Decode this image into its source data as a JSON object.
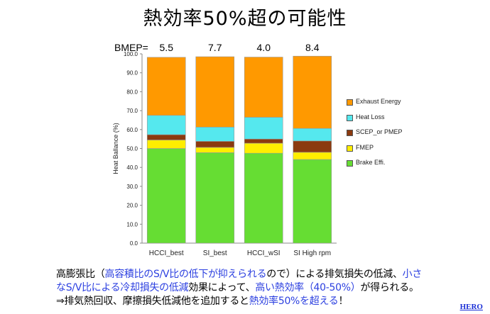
{
  "slide": {
    "title": "熱効率50%超の可能性",
    "bmep_label": "BMEP=",
    "bmep_values": [
      "5.5",
      "7.7",
      "4.0",
      "8.4"
    ],
    "note": {
      "line1_a": "高膨張比（",
      "line1_b": "高容積比のS/V比の低下が抑えられる",
      "line1_c": "ので）による排気損失の低減、",
      "line1_d": "小さ",
      "line2_a": "なS/V比による冷却損失の低減",
      "line2_b": "効果によって、",
      "line2_c": "高い熱効率（40-50%）",
      "line2_d": "が得られる。",
      "line3_a": "⇒排気熱回収、摩擦損失低減他を追加すると",
      "line3_b": "熱効率50%を超える",
      "line3_c": "！"
    },
    "link_text": "HERO"
  },
  "colors": {
    "brake": "#66dd33",
    "fmep": "#ffee00",
    "scep": "#8b3a0f",
    "heat_loss": "#55e8ee",
    "exhaust": "#ff9900",
    "highlight_text": "#2b3fe0"
  },
  "chart_data": {
    "type": "bar",
    "stacked": true,
    "categories": [
      "HCCI_best",
      "SI_best",
      "HCCI_wSI",
      "SI High rpm"
    ],
    "ylabel": "Heat Ballance (%)",
    "ylim": [
      0,
      100
    ],
    "yticks": [
      "0.0",
      "10.0",
      "20.0",
      "30.0",
      "40.0",
      "50.0",
      "60.0",
      "70.0",
      "80.0",
      "90.0",
      "100.0"
    ],
    "grid": false,
    "legend_position": "right",
    "series": [
      {
        "name": "Brake Effi.",
        "color": "#66dd33",
        "values": [
          50.0,
          47.8,
          47.5,
          44.2
        ]
      },
      {
        "name": "FMEP",
        "color": "#ffee00",
        "values": [
          4.5,
          2.8,
          5.3,
          3.8
        ]
      },
      {
        "name": "SCEP_or PMEP",
        "color": "#8b3a0f",
        "values": [
          2.8,
          3.2,
          2.2,
          6.0
        ]
      },
      {
        "name": "Heat Loss",
        "color": "#55e8ee",
        "values": [
          10.2,
          7.5,
          11.5,
          6.6
        ]
      },
      {
        "name": "Exhaust Energy",
        "color": "#ff9900",
        "values": [
          30.7,
          37.2,
          31.8,
          38.2
        ]
      }
    ]
  }
}
